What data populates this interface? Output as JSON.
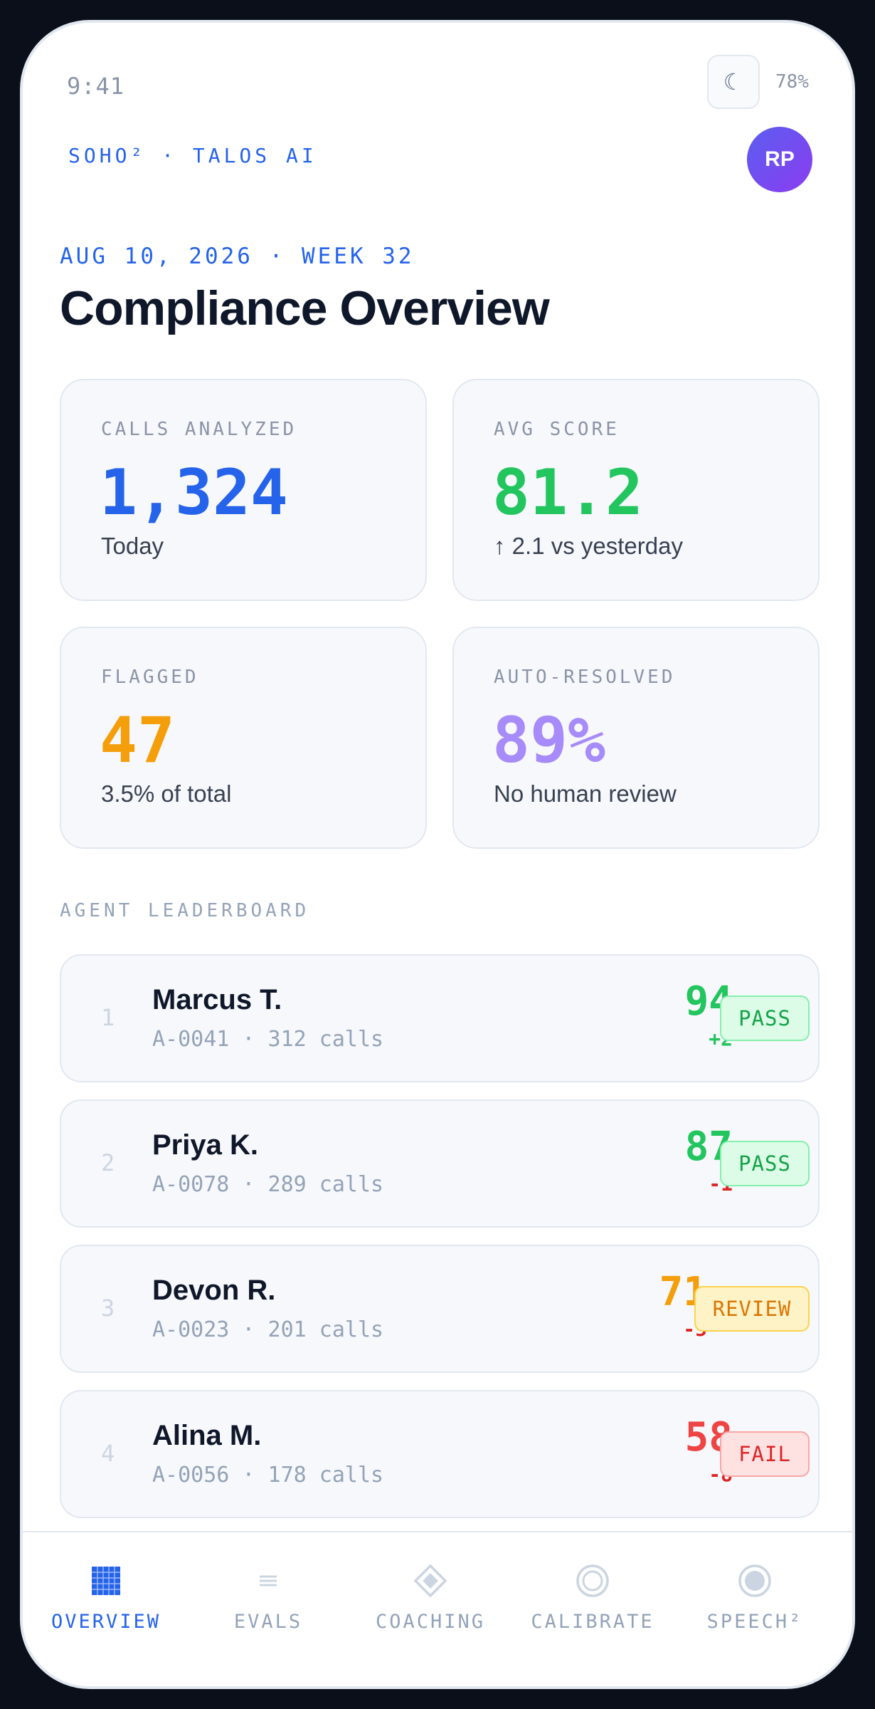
{
  "status": {
    "time": "9:41",
    "battery": "78%",
    "theme_icon": "☾"
  },
  "brand": "SOHO² · TALOS AI",
  "avatar_initials": "RP",
  "date": "AUG 10, 2026 · WEEK 32",
  "title": "Compliance Overview",
  "stats": [
    {
      "label": "CALLS ANALYZED",
      "value": "1,324",
      "sub": "Today",
      "color": "#2563eb"
    },
    {
      "label": "AVG SCORE",
      "value": "81.2",
      "sub": "↑ 2.1 vs yesterday",
      "color": "#22c55e"
    },
    {
      "label": "FLAGGED",
      "value": "47",
      "sub": "3.5% of total",
      "color": "#f59e0b"
    },
    {
      "label": "AUTO-RESOLVED",
      "value": "89%",
      "sub": "No human review",
      "color": "#a78bfa"
    }
  ],
  "leaderboard": {
    "label": "AGENT LEADERBOARD",
    "rows": [
      {
        "rank": "1",
        "name": "Marcus T.",
        "meta": "A-0041 · 312 calls",
        "score": "94",
        "delta": "+2",
        "badge": "PASS"
      },
      {
        "rank": "2",
        "name": "Priya K.",
        "meta": "A-0078 · 289 calls",
        "score": "87",
        "delta": "-1",
        "badge": "PASS"
      },
      {
        "rank": "3",
        "name": "Devon R.",
        "meta": "A-0023 · 201 calls",
        "score": "71",
        "delta": "-5",
        "badge": "REVIEW"
      },
      {
        "rank": "4",
        "name": "Alina M.",
        "meta": "A-0056 · 178 calls",
        "score": "58",
        "delta": "-8",
        "badge": "FAIL"
      }
    ]
  },
  "nav": [
    {
      "label": "OVERVIEW",
      "icon": "grid-icon",
      "active": true
    },
    {
      "label": "EVALS",
      "icon": "list-icon",
      "active": false
    },
    {
      "label": "COACHING",
      "icon": "diamond-icon",
      "active": false
    },
    {
      "label": "CALIBRATE",
      "icon": "ring-icon",
      "active": false
    },
    {
      "label": "SPEECH²",
      "icon": "record-icon",
      "active": false
    }
  ],
  "colors": {
    "accent": "#2563eb",
    "pass": "#22c55e",
    "review": "#f59e0b",
    "fail": "#ef4444",
    "negative_delta": "#dc2626"
  }
}
